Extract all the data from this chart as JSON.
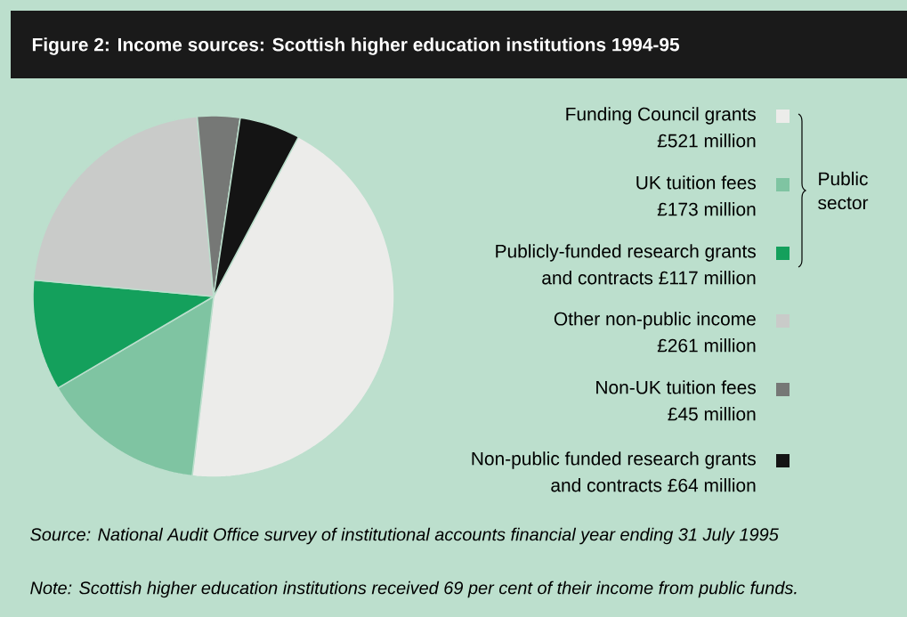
{
  "chart_data": {
    "type": "pie",
    "title": "Figure 2: Income sources: Scottish higher education institutions 1994-95",
    "categories": [
      "Funding Council grants",
      "UK tuition fees",
      "Publicly-funded research grants and contracts",
      "Other non-public income",
      "Non-UK tuition fees",
      "Non-public funded research grants and contracts"
    ],
    "values": [
      521,
      173,
      117,
      261,
      45,
      64
    ],
    "value_labels": [
      "£521 million",
      "£173 million",
      "£117 million",
      "£261 million",
      "£45 million",
      "£64 million"
    ],
    "colors": [
      "#ececea",
      "#7fc4a2",
      "#14a05c",
      "#c9cbc9",
      "#767876",
      "#141414"
    ],
    "legend": "right",
    "annotations": [
      "Public sector",
      "Source: National Audit Office survey of institutional accounts financial year ending 31 July 1995",
      "Note:   Scottish higher education institutions received 69 per cent of their income from public funds."
    ]
  }
}
